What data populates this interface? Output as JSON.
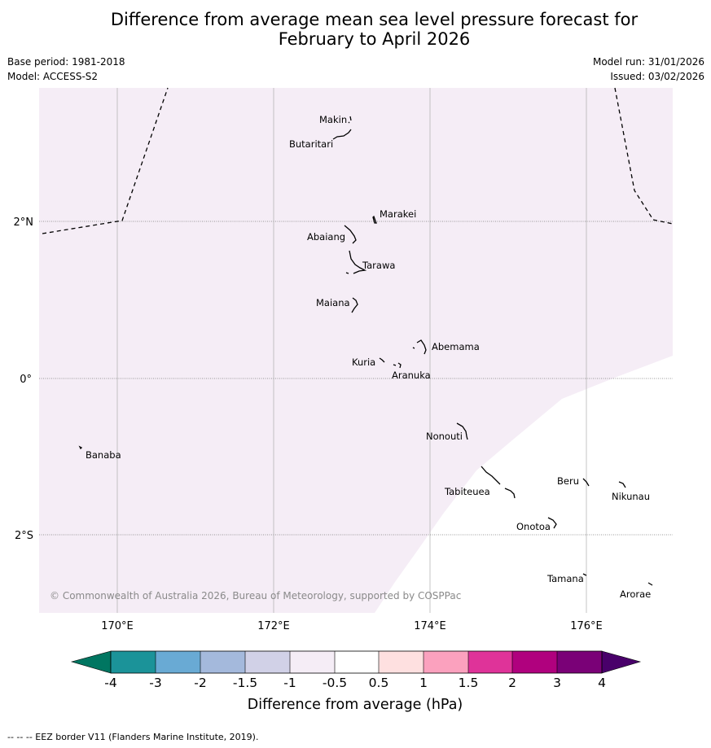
{
  "title": {
    "line1": "Difference from average mean sea level pressure forecast for",
    "line2": "February to April 2026"
  },
  "meta": {
    "base_period": "Base period: 1981-2018",
    "model": "Model: ACCESS-S2",
    "model_run": "Model run: 31/01/2026",
    "issued": "Issued: 03/02/2026"
  },
  "map": {
    "lon_labels": [
      "170°E",
      "172°E",
      "174°E",
      "176°E"
    ],
    "lat_labels": [
      "2°N",
      "0°",
      "2°S"
    ],
    "places": [
      {
        "name": "Makin"
      },
      {
        "name": "Butaritari"
      },
      {
        "name": "Marakei"
      },
      {
        "name": "Abaiang"
      },
      {
        "name": "Tarawa"
      },
      {
        "name": "Maiana"
      },
      {
        "name": "Abemama"
      },
      {
        "name": "Kuria"
      },
      {
        "name": "Aranuka"
      },
      {
        "name": "Banaba"
      },
      {
        "name": "Nonouti"
      },
      {
        "name": "Beru"
      },
      {
        "name": "Tabiteuea"
      },
      {
        "name": "Nikunau"
      },
      {
        "name": "Onotoa"
      },
      {
        "name": "Tamana"
      },
      {
        "name": "Arorae"
      }
    ],
    "copyright": "© Commonwealth of Australia 2026, Bureau of Meteorology, supported by COSPPac",
    "fill_color": "#f5edf6"
  },
  "legend": {
    "title": "Difference from average (hPa)",
    "ticks": [
      "-4",
      "-3",
      "-2",
      "-1.5",
      "-1",
      "-0.5",
      "0.5",
      "1",
      "1.5",
      "2",
      "3",
      "4"
    ],
    "colors": [
      "#007661",
      "#1b9399",
      "#69aad4",
      "#a4b9dc",
      "#d1d1e7",
      "#f5edf6",
      "#ffffff",
      "#fee0e0",
      "#fba1be",
      "#df3399",
      "#b0017e",
      "#7a0177",
      "#49006a"
    ]
  },
  "footer": "--  --  -- EEZ border V11 (Flanders Marine Institute, 2019)."
}
